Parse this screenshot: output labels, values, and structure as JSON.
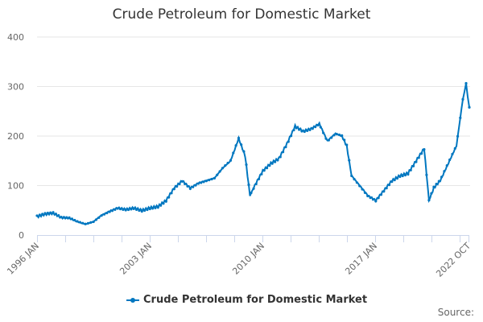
{
  "chart_data": {
    "type": "line",
    "title": "Crude Petroleum for Domestic Market",
    "xlabel": "",
    "ylabel": "",
    "ylim": [
      0,
      400
    ],
    "yticks": [
      0,
      100,
      200,
      300,
      400
    ],
    "xtick_labels": [
      "1996 JAN",
      "2003 JAN",
      "2010 JAN",
      "2017 JAN",
      "2022 OCT"
    ],
    "grid": true,
    "legend_position": "bottom",
    "series": [
      {
        "name": "Crude Petroleum for Domestic Market",
        "color": "#0077c0",
        "x": [
          1996.0,
          1996.5,
          1997.0,
          1997.5,
          1998.0,
          1998.5,
          1999.0,
          1999.5,
          2000.0,
          2000.5,
          2001.0,
          2001.5,
          2002.0,
          2002.5,
          2003.0,
          2003.5,
          2004.0,
          2004.5,
          2005.0,
          2005.5,
          2006.0,
          2006.5,
          2007.0,
          2007.5,
          2008.0,
          2008.5,
          2008.9,
          2009.2,
          2009.5,
          2010.0,
          2010.5,
          2011.0,
          2011.5,
          2012.0,
          2012.5,
          2013.0,
          2013.5,
          2014.0,
          2014.5,
          2014.9,
          2015.2,
          2015.5,
          2016.0,
          2016.5,
          2017.0,
          2017.5,
          2018.0,
          2018.5,
          2019.0,
          2019.5,
          2020.0,
          2020.3,
          2020.6,
          2021.0,
          2021.5,
          2022.0,
          2022.4,
          2022.6,
          2022.8
        ],
        "values": [
          37,
          42,
          44,
          35,
          34,
          27,
          22,
          27,
          40,
          48,
          55,
          52,
          55,
          50,
          55,
          58,
          70,
          95,
          110,
          95,
          105,
          110,
          115,
          135,
          150,
          195,
          160,
          80,
          100,
          130,
          145,
          155,
          185,
          220,
          210,
          215,
          225,
          190,
          205,
          200,
          180,
          120,
          100,
          80,
          70,
          90,
          110,
          120,
          125,
          150,
          175,
          70,
          95,
          110,
          145,
          180,
          275,
          305,
          258
        ]
      }
    ]
  },
  "title": "Crude Petroleum for Domestic Market",
  "legend": {
    "label": "Crude Petroleum for Domestic Market"
  },
  "source_label": "Source:"
}
